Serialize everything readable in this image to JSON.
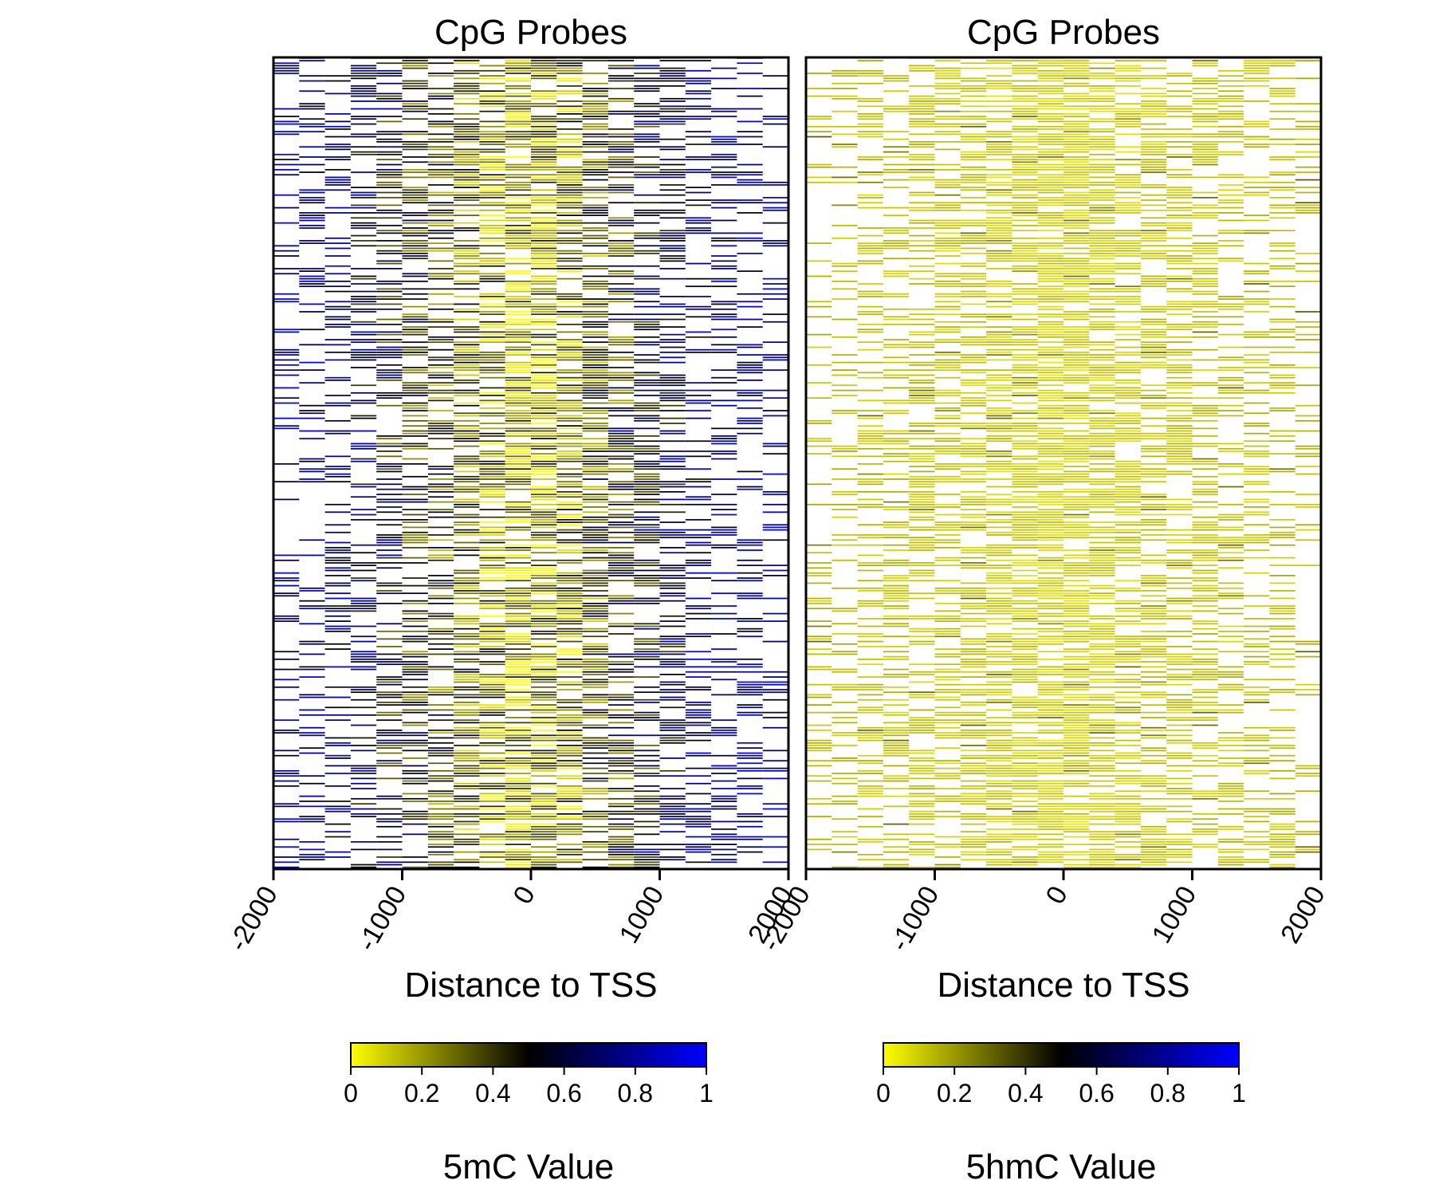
{
  "chart_data": [
    {
      "type": "heatmap",
      "title": "CpG Probes",
      "xlabel": "Distance to TSS",
      "ylabel": "",
      "xlim": [
        -2000,
        2000
      ],
      "xticks": [
        -2000,
        -1000,
        0,
        1000,
        2000
      ],
      "xtick_labels": [
        "-2000",
        "-1000",
        "0",
        "1000",
        "2000"
      ],
      "x_bins": 20,
      "rows": 320,
      "value_range": [
        0,
        1
      ],
      "bin_profile_description_values": [
        0.82,
        0.75,
        0.72,
        0.65,
        0.55,
        0.45,
        0.38,
        0.3,
        0.22,
        0.18,
        0.2,
        0.25,
        0.35,
        0.45,
        0.55,
        0.65,
        0.72,
        0.78,
        0.82,
        0.85
      ],
      "colorbar": {
        "label": "5mC Value",
        "ticks": [
          0,
          0.2,
          0.4,
          0.6,
          0.8,
          1
        ],
        "tick_labels": [
          "0",
          "0.2",
          "0.4",
          "0.6",
          "0.8",
          "1"
        ],
        "colors": [
          "#ffff00",
          "#000000",
          "#0000ff"
        ]
      }
    },
    {
      "type": "heatmap",
      "title": "CpG Probes",
      "xlabel": "Distance to TSS",
      "ylabel": "",
      "xlim": [
        -2000,
        2000
      ],
      "xticks": [
        -2000,
        -1000,
        0,
        1000,
        2000
      ],
      "xtick_labels": [
        "-2000",
        "-1000",
        "0",
        "1000",
        "2000"
      ],
      "x_bins": 20,
      "rows": 320,
      "value_range": [
        0,
        1
      ],
      "bin_profile_description_values": [
        0.08,
        0.08,
        0.07,
        0.07,
        0.07,
        0.06,
        0.06,
        0.05,
        0.05,
        0.04,
        0.04,
        0.05,
        0.05,
        0.06,
        0.06,
        0.07,
        0.07,
        0.07,
        0.08,
        0.08
      ],
      "colorbar": {
        "label": "5hmC Value",
        "ticks": [
          0,
          0.2,
          0.4,
          0.6,
          0.8,
          1
        ],
        "tick_labels": [
          "0",
          "0.2",
          "0.4",
          "0.6",
          "0.8",
          "1"
        ],
        "colors": [
          "#ffff00",
          "#000000",
          "#0000ff"
        ]
      }
    }
  ]
}
